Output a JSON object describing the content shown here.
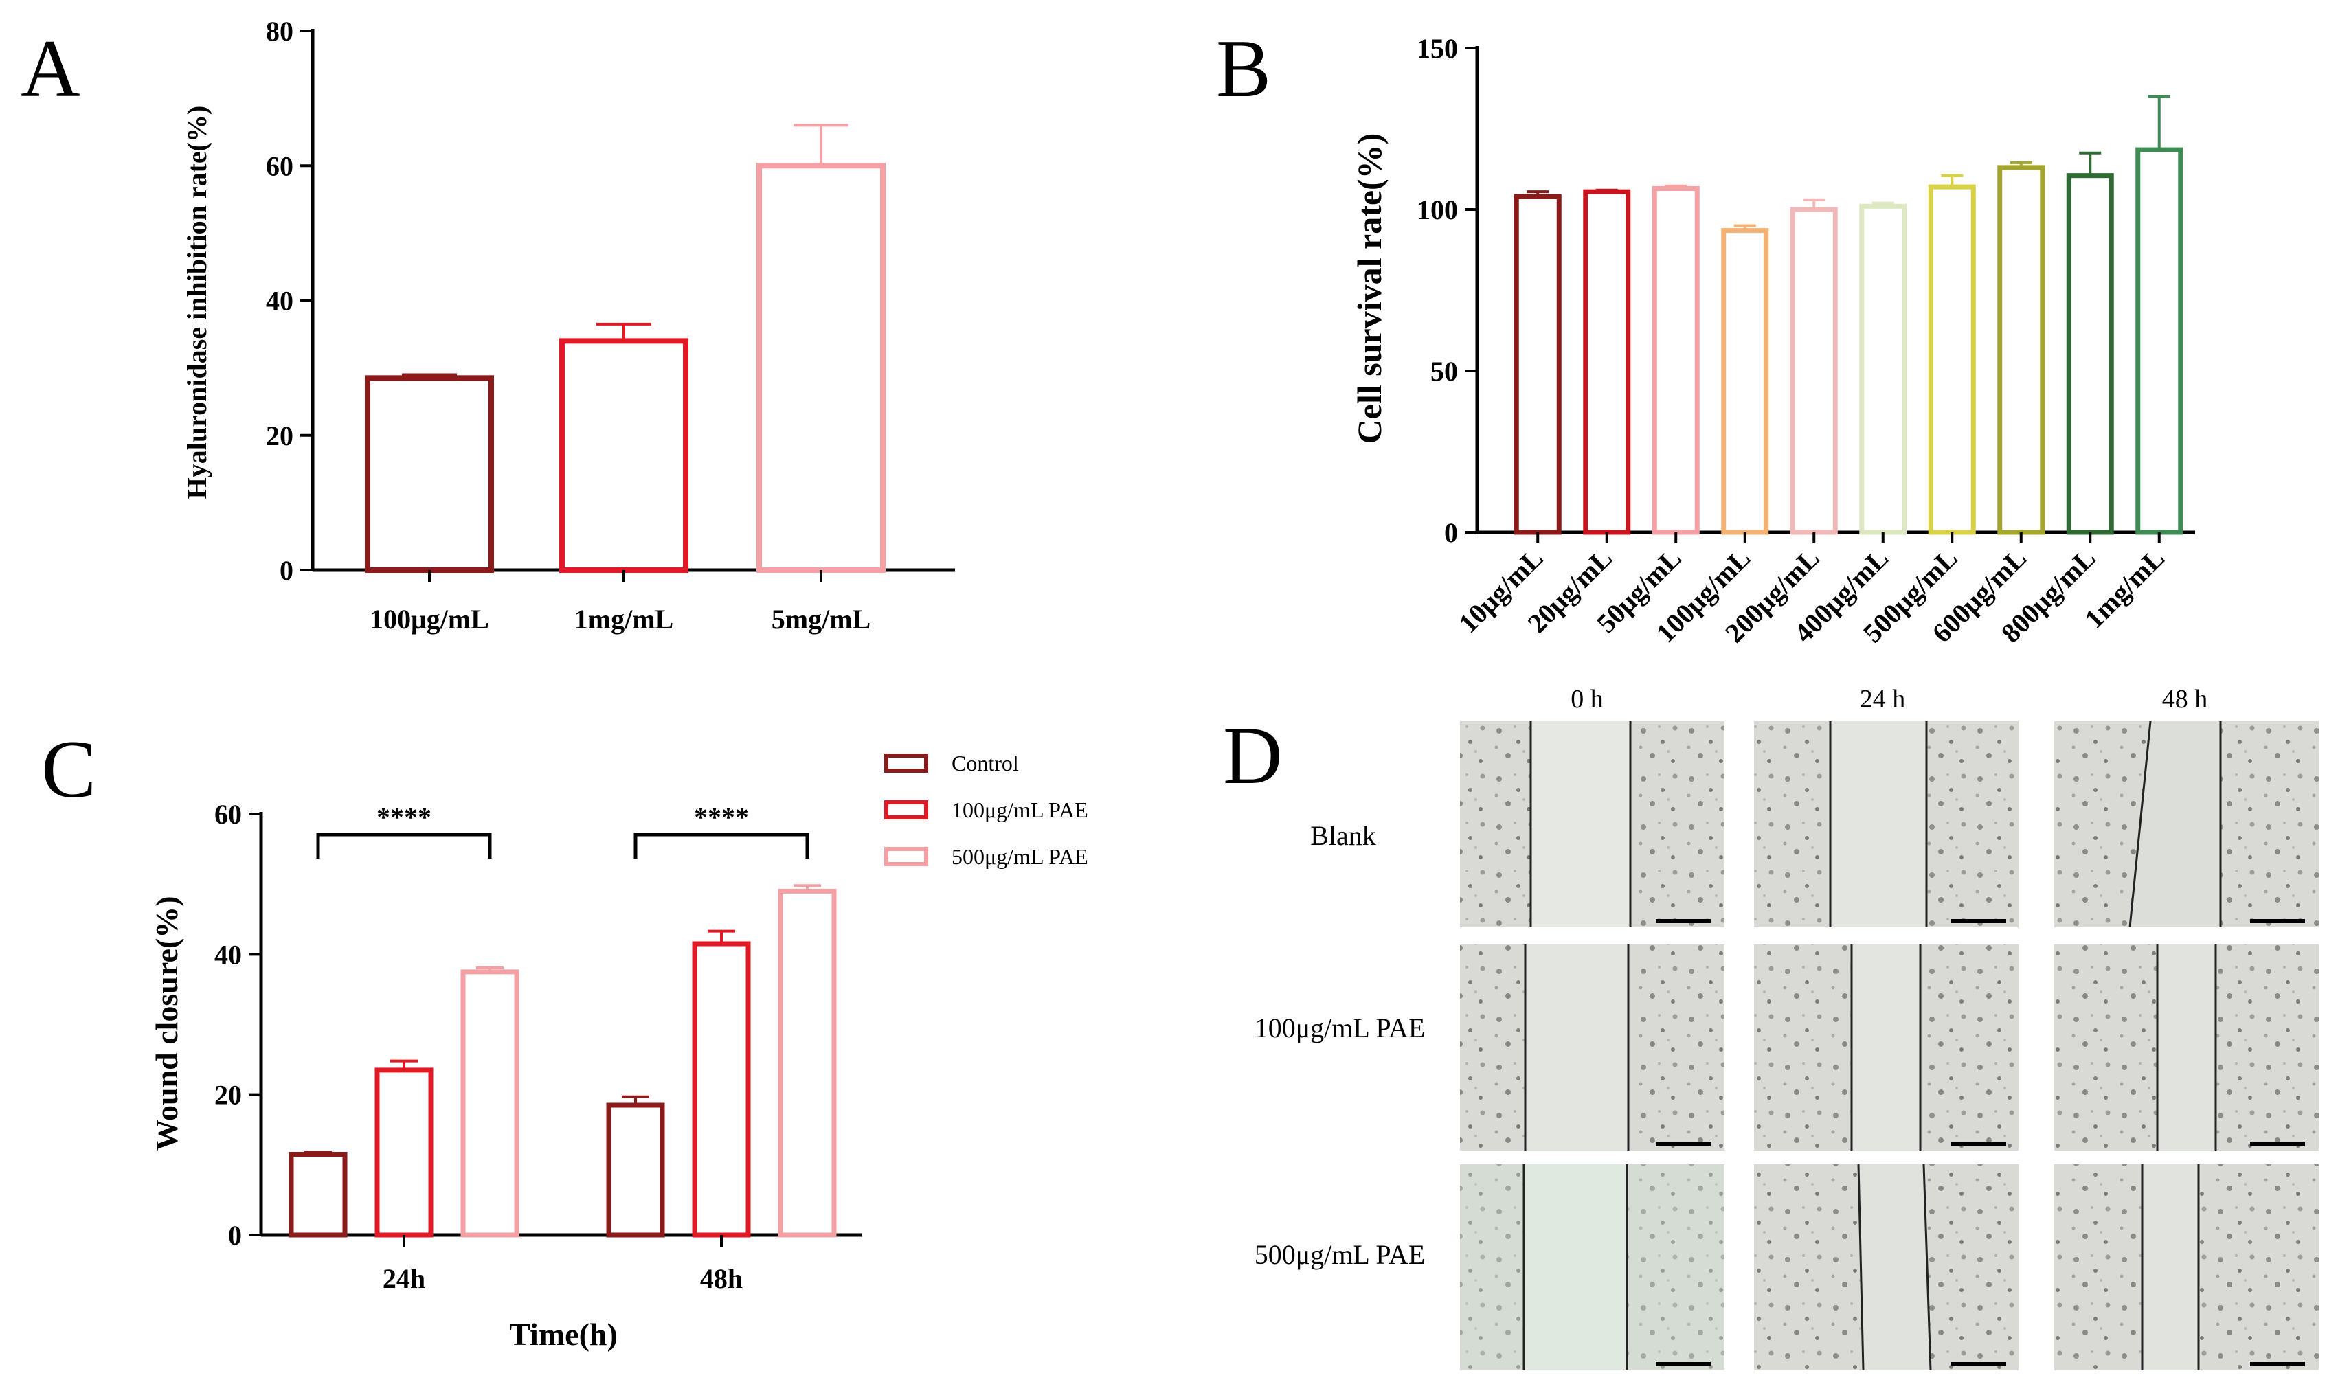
{
  "colors": {
    "dark_red": "#8b1a1a",
    "red": "#e01a24",
    "pink": "#f4a0a4",
    "orange": "#f3b274",
    "light_pink": "#f2b8b8",
    "pale_green": "#dde8c2",
    "yellow_green": "#d7d24a",
    "olive": "#a3a52c",
    "dark_green": "#2f6a34",
    "green": "#3f8a55",
    "star_bracket": "#000000"
  },
  "chart_data": [
    {
      "panel": "A",
      "type": "bar",
      "title": "",
      "xlabel": "",
      "ylabel": "Hyaluronidase inhibition rate(%)",
      "categories": [
        "100μg/mL",
        "1mg/mL",
        "5mg/mL"
      ],
      "values": [
        28.5,
        34.0,
        60.0
      ],
      "errors": [
        0.5,
        2.5,
        6.0
      ],
      "ylim": [
        0,
        80
      ],
      "yticks": [
        0,
        20,
        40,
        60,
        80
      ],
      "colors": [
        "#8b1a1a",
        "#e01a24",
        "#f4a0a4"
      ]
    },
    {
      "panel": "B",
      "type": "bar",
      "title": "",
      "xlabel": "",
      "ylabel": "Cell survival rate(%)",
      "categories": [
        "10μg/mL",
        "20μg/mL",
        "50μg/mL",
        "100μg/mL",
        "200μg/mL",
        "400μg/mL",
        "500μg/mL",
        "600μg/mL",
        "800μg/mL",
        "1mg/mL"
      ],
      "values": [
        104,
        105.5,
        106.5,
        93.5,
        100,
        101,
        107,
        113,
        110.5,
        118.5
      ],
      "errors": [
        1.5,
        0.5,
        0.8,
        1.5,
        3.0,
        1.0,
        3.5,
        1.5,
        7.0,
        16.5
      ],
      "ylim": [
        0,
        150
      ],
      "yticks": [
        0,
        50,
        100,
        150
      ],
      "colors": [
        "#8b1a1a",
        "#c8141e",
        "#f4a0a4",
        "#f3b274",
        "#f2b8b8",
        "#dde8c2",
        "#d7d24a",
        "#a3a52c",
        "#2f6a34",
        "#3f8a55"
      ]
    },
    {
      "panel": "C",
      "type": "bar",
      "title": "",
      "xlabel": "Time(h)",
      "ylabel": "Wound closure(%)",
      "categories": [
        "24h",
        "48h"
      ],
      "series": [
        {
          "name": "Control",
          "values": [
            11.5,
            18.5
          ],
          "errors": [
            0.3,
            1.2
          ],
          "color": "#8b1a1a"
        },
        {
          "name": "100μg/mL PAE",
          "values": [
            23.5,
            41.5
          ],
          "errors": [
            1.3,
            1.8
          ],
          "color": "#e01a24"
        },
        {
          "name": "500μg/mL PAE",
          "values": [
            37.5,
            49.0
          ],
          "errors": [
            0.6,
            0.8
          ],
          "color": "#f4a0a4"
        }
      ],
      "significance": [
        "****",
        "****"
      ],
      "ylim": [
        0,
        60
      ],
      "yticks": [
        0,
        20,
        40,
        60
      ],
      "legend_position": "top-right"
    }
  ],
  "panels": {
    "a_letter": "A",
    "b_letter": "B",
    "c_letter": "C",
    "d_letter": "D"
  },
  "panel_d": {
    "columns": [
      "0 h",
      "24 h",
      "48 h"
    ],
    "rows": [
      "Blank",
      "100μg/mL PAE",
      "500μg/mL PAE"
    ]
  }
}
